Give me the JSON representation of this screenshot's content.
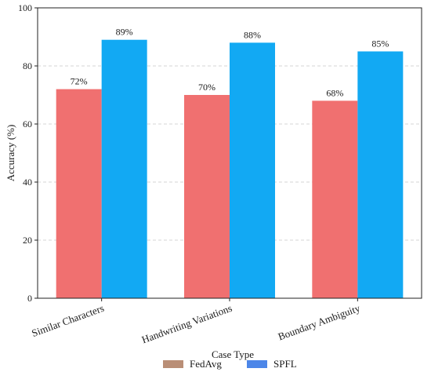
{
  "chart_data": {
    "type": "bar",
    "categories": [
      "Similar Characters",
      "Handwriting Variations",
      "Boundary Ambiguity"
    ],
    "series": [
      {
        "name": "FedAvg",
        "values": [
          72,
          70,
          68
        ],
        "color": "#f07070",
        "legend_color": "#b98e76"
      },
      {
        "name": "SPFL",
        "values": [
          89,
          88,
          85
        ],
        "color": "#12a9f3",
        "legend_color": "#4c86e8"
      }
    ],
    "data_labels": [
      [
        "72%",
        "70%",
        "68%"
      ],
      [
        "89%",
        "88%",
        "85%"
      ]
    ],
    "title": "",
    "xlabel": "Case Type",
    "ylabel": "Accuracy (%)",
    "ylim": [
      0,
      100
    ],
    "yticks": [
      0,
      20,
      40,
      60,
      80,
      100
    ],
    "grid": "horizontal dashed",
    "legend_placement": "bottom-center"
  }
}
